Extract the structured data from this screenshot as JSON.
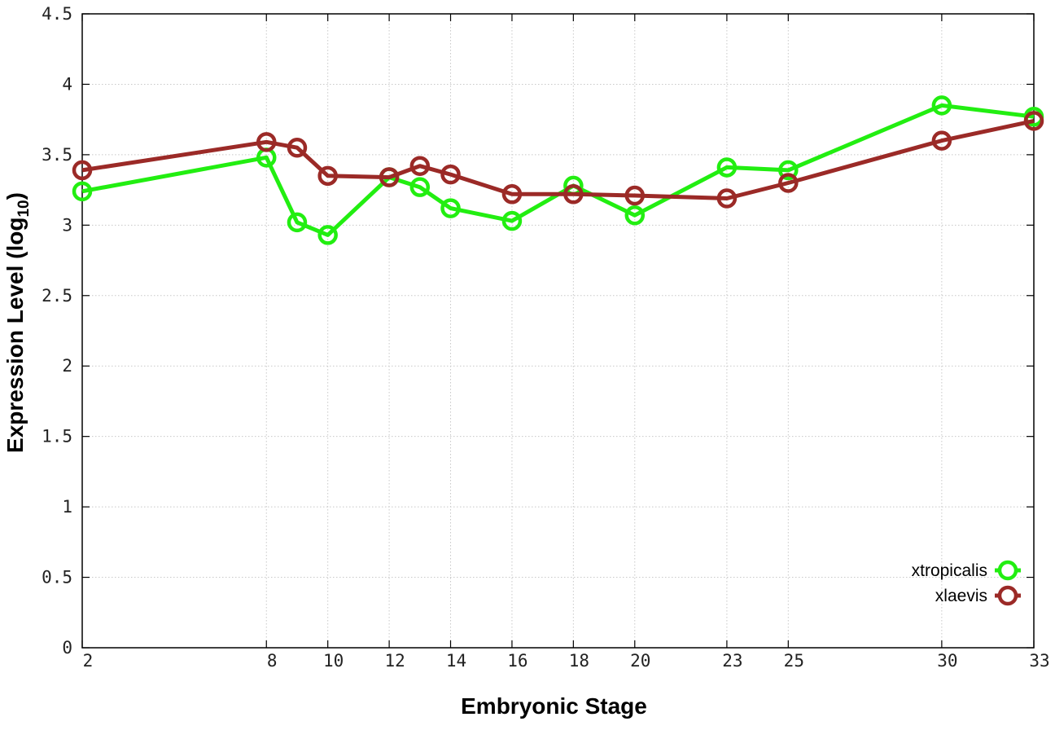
{
  "chart_data": {
    "type": "line",
    "xlabel": "Embryonic Stage",
    "ylabel_main": "Expression Level (log",
    "ylabel_sub": "10",
    "ylabel_close": ")",
    "xlim": [
      2,
      33
    ],
    "ylim": [
      0,
      4.5
    ],
    "x_ticks": [
      2,
      8,
      10,
      12,
      14,
      16,
      18,
      20,
      23,
      25,
      30,
      33
    ],
    "y_ticks": [
      0,
      0.5,
      1,
      1.5,
      2,
      2.5,
      3,
      3.5,
      4,
      4.5
    ],
    "grid": true,
    "legend_position": "bottom-right",
    "series": [
      {
        "name": "xtropicalis",
        "color": "#22ee11",
        "x": [
          2,
          8,
          9,
          10,
          12,
          13,
          14,
          16,
          18,
          20,
          23,
          25,
          30,
          33
        ],
        "y": [
          3.24,
          3.48,
          3.02,
          2.93,
          3.34,
          3.27,
          3.12,
          3.03,
          3.28,
          3.07,
          3.41,
          3.39,
          3.85,
          3.77
        ]
      },
      {
        "name": "xlaevis",
        "color": "#9b2a27",
        "x": [
          2,
          8,
          9,
          10,
          12,
          13,
          14,
          16,
          18,
          20,
          23,
          25,
          30,
          33
        ],
        "y": [
          3.39,
          3.59,
          3.55,
          3.35,
          3.34,
          3.42,
          3.36,
          3.22,
          3.22,
          3.21,
          3.19,
          3.3,
          3.6,
          3.74
        ]
      }
    ]
  }
}
